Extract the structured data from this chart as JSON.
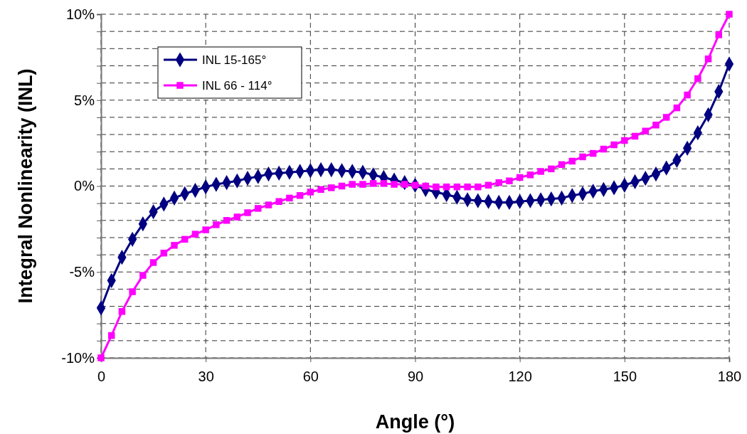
{
  "chart_data": {
    "type": "line",
    "xlabel": "Angle (°)",
    "ylabel": "Integral Nonlinearity (INL)",
    "x": [
      0,
      3,
      6,
      9,
      12,
      15,
      18,
      21,
      24,
      27,
      30,
      33,
      36,
      39,
      42,
      45,
      48,
      51,
      54,
      57,
      60,
      63,
      66,
      69,
      72,
      75,
      78,
      81,
      84,
      87,
      90,
      93,
      96,
      99,
      102,
      105,
      108,
      111,
      114,
      117,
      120,
      123,
      126,
      129,
      132,
      135,
      138,
      141,
      144,
      147,
      150,
      153,
      156,
      159,
      162,
      165,
      168,
      171,
      174,
      177,
      180
    ],
    "series": [
      {
        "name": "INL 15-165°",
        "color": "#000080",
        "marker": "diamond",
        "values": [
          -7.1,
          -5.5,
          -4.15,
          -3.1,
          -2.2,
          -1.5,
          -1.05,
          -0.7,
          -0.45,
          -0.25,
          -0.05,
          0.1,
          0.2,
          0.3,
          0.45,
          0.55,
          0.7,
          0.75,
          0.8,
          0.85,
          0.9,
          0.95,
          0.95,
          0.9,
          0.85,
          0.8,
          0.65,
          0.5,
          0.35,
          0.2,
          0.05,
          -0.2,
          -0.35,
          -0.5,
          -0.65,
          -0.8,
          -0.85,
          -0.9,
          -0.95,
          -0.95,
          -0.9,
          -0.85,
          -0.8,
          -0.75,
          -0.7,
          -0.55,
          -0.45,
          -0.3,
          -0.2,
          -0.1,
          0.05,
          0.25,
          0.45,
          0.7,
          1.05,
          1.5,
          2.2,
          3.1,
          4.15,
          5.5,
          7.1
        ]
      },
      {
        "name": "INL 66 - 114°",
        "color": "#ff00ff",
        "marker": "square",
        "values": [
          -10,
          -8.7,
          -7.3,
          -6.15,
          -5.2,
          -4.45,
          -3.9,
          -3.45,
          -3.1,
          -2.8,
          -2.55,
          -2.25,
          -2.0,
          -1.8,
          -1.55,
          -1.3,
          -1.1,
          -0.9,
          -0.7,
          -0.55,
          -0.35,
          -0.2,
          -0.1,
          0.0,
          0.1,
          0.1,
          0.15,
          0.15,
          0.1,
          0.1,
          0.05,
          0.0,
          -0.05,
          -0.05,
          -0.05,
          -0.05,
          -0.05,
          0.05,
          0.2,
          0.3,
          0.5,
          0.65,
          0.85,
          1.0,
          1.25,
          1.45,
          1.7,
          1.9,
          2.15,
          2.4,
          2.65,
          2.9,
          3.2,
          3.55,
          4.0,
          4.55,
          5.3,
          6.25,
          7.4,
          8.8,
          10
        ]
      }
    ],
    "xlim": [
      0,
      180
    ],
    "xticks": [
      0,
      30,
      60,
      90,
      120,
      150,
      180
    ],
    "ylim": [
      -10,
      10
    ],
    "yticks": [
      {
        "value": -10,
        "label": "-10%"
      },
      {
        "value": -9,
        "label": null
      },
      {
        "value": -8,
        "label": null
      },
      {
        "value": -7,
        "label": null
      },
      {
        "value": -6,
        "label": null
      },
      {
        "value": -5,
        "label": "-5%"
      },
      {
        "value": -4,
        "label": null
      },
      {
        "value": -3,
        "label": null
      },
      {
        "value": -2,
        "label": null
      },
      {
        "value": -1,
        "label": null
      },
      {
        "value": 0,
        "label": "0%"
      },
      {
        "value": 1,
        "label": null
      },
      {
        "value": 2,
        "label": null
      },
      {
        "value": 3,
        "label": null
      },
      {
        "value": 4,
        "label": null
      },
      {
        "value": 5,
        "label": "5%"
      },
      {
        "value": 6,
        "label": null
      },
      {
        "value": 7,
        "label": null
      },
      {
        "value": 8,
        "label": null
      },
      {
        "value": 9,
        "label": null
      },
      {
        "value": 10,
        "label": "10%"
      }
    ],
    "grid": true,
    "legend": "top left",
    "line_style": "solid"
  }
}
